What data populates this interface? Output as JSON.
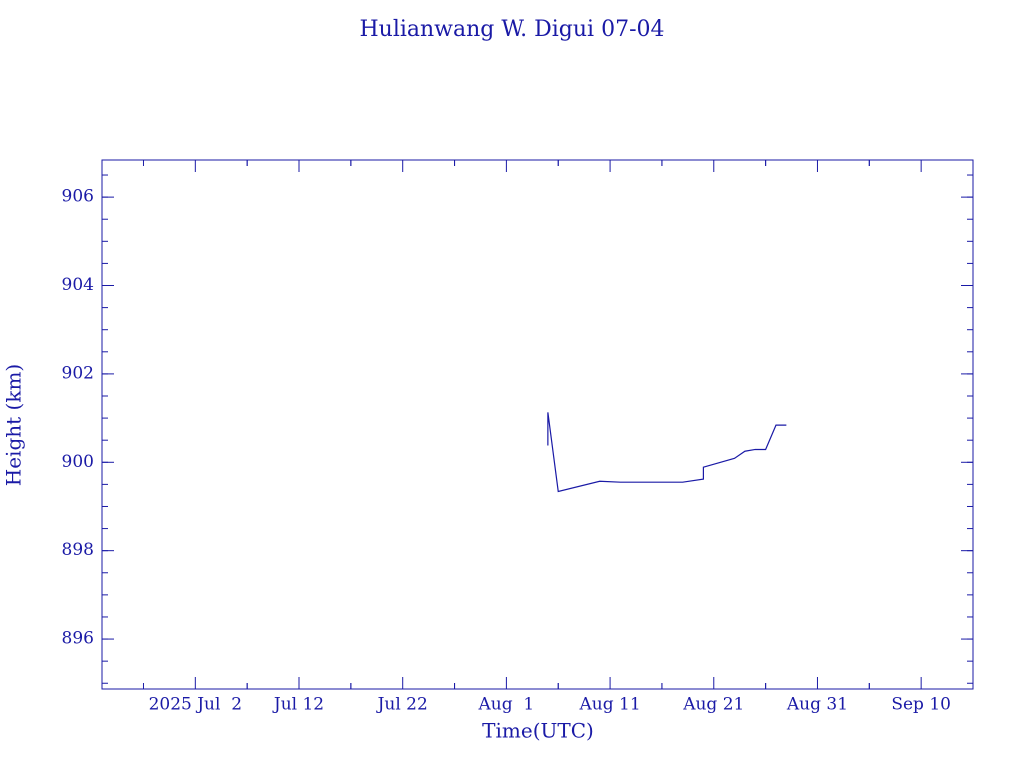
{
  "chart_data": {
    "type": "line",
    "title": "Hulianwang W. Digui 07-04",
    "x_label": "Time(UTC)",
    "y_label": "Height (km)",
    "color": "#1a1aa6",
    "xlim": [
      "2025-06-23",
      "2025-09-15"
    ],
    "xticks": [
      {
        "value": "2025-07-02",
        "label": "2025 Jul  2"
      },
      {
        "value": "2025-07-12",
        "label": "Jul 12"
      },
      {
        "value": "2025-07-22",
        "label": "Jul 22"
      },
      {
        "value": "2025-08-01",
        "label": "Aug  1"
      },
      {
        "value": "2025-08-11",
        "label": "Aug 11"
      },
      {
        "value": "2025-08-21",
        "label": "Aug 21"
      },
      {
        "value": "2025-08-31",
        "label": "Aug 31"
      },
      {
        "value": "2025-09-10",
        "label": "Sep 10"
      }
    ],
    "ylim": [
      894.87,
      906.84
    ],
    "yticks": [
      896,
      898,
      900,
      902,
      904,
      906
    ],
    "x": [
      "2025-08-05",
      "2025-08-05",
      "2025-08-06",
      "2025-08-10",
      "2025-08-12",
      "2025-08-18",
      "2025-08-20",
      "2025-08-20",
      "2025-08-23",
      "2025-08-24",
      "2025-08-25",
      "2025-08-26",
      "2025-08-27",
      "2025-08-28"
    ],
    "values": [
      900.38,
      901.13,
      899.34,
      899.57,
      899.55,
      899.55,
      899.62,
      899.89,
      900.09,
      900.25,
      900.29,
      900.29,
      900.84,
      900.84
    ]
  }
}
